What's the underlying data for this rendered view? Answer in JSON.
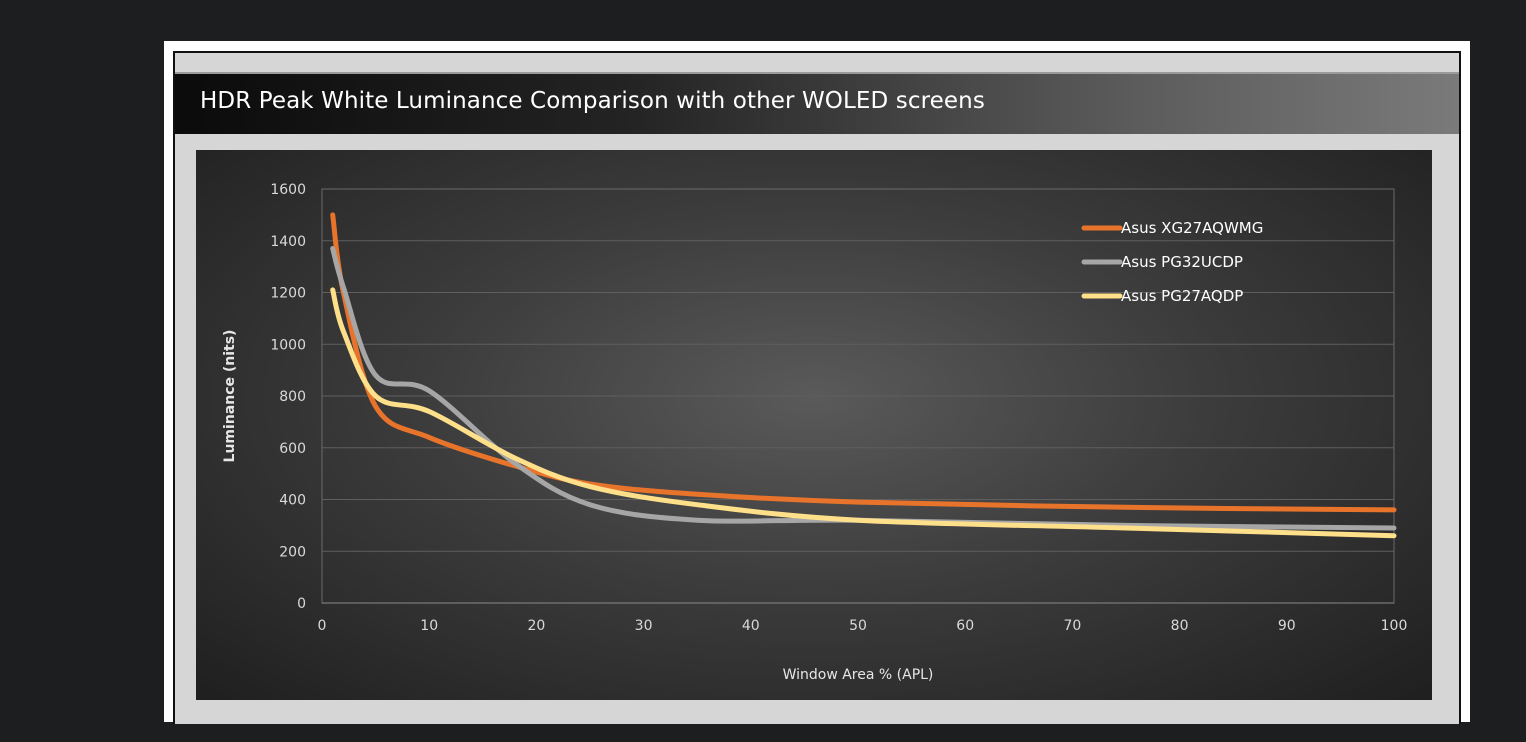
{
  "chart_data": {
    "type": "line",
    "title": "HDR Peak White Luminance Comparison with other WOLED screens",
    "xlabel": "Window Area % (APL)",
    "ylabel": "Luminance (nits)",
    "xlim": [
      0,
      100
    ],
    "ylim": [
      0,
      1600
    ],
    "x_ticks": [
      0,
      10,
      20,
      30,
      40,
      50,
      60,
      70,
      80,
      90,
      100
    ],
    "y_ticks": [
      0,
      200,
      400,
      600,
      800,
      1000,
      1200,
      1400,
      1600
    ],
    "grid": "horizontal",
    "legend_position": "top-right",
    "x": [
      1,
      2,
      5,
      10,
      18,
      25,
      35,
      50,
      75,
      100
    ],
    "series": [
      {
        "name": "Asus XG27AQWMG",
        "color": "#e8742c",
        "values": [
          1500,
          1200,
          760,
          640,
          530,
          460,
          420,
          390,
          370,
          360
        ]
      },
      {
        "name": "Asus PG32UCDP",
        "color": "#a6a6a6",
        "values": [
          1370,
          1220,
          880,
          820,
          540,
          380,
          320,
          320,
          300,
          290
        ]
      },
      {
        "name": "Asus PG27AQDP",
        "color": "#ffe08a",
        "values": [
          1210,
          1050,
          800,
          740,
          560,
          450,
          380,
          320,
          290,
          260
        ]
      }
    ]
  },
  "colors": {
    "page_background": "#1d1e20",
    "gridline": "#5f5f5f"
  }
}
